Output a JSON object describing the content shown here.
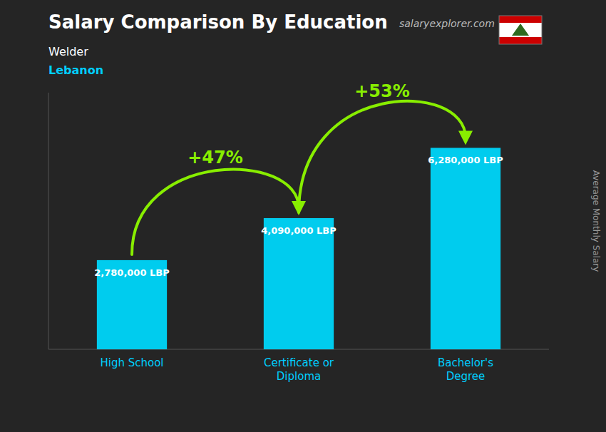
{
  "chart_data": {
    "type": "bar",
    "title": "Salary Comparison By Education",
    "subtitle": [
      "Welder",
      "Lebanon"
    ],
    "source": "salaryexplorer.com",
    "y_label": "Average Monthly Salary",
    "categories": [
      "High School",
      "Certificate or\nDiploma",
      "Bachelor's\nDegree"
    ],
    "values": [
      2780000,
      4090000,
      6280000
    ],
    "value_labels": [
      "2,780,000 LBP",
      "4,090,000 LBP",
      "6,280,000 LBP"
    ],
    "data_labels": true,
    "color": "#00ccee",
    "ylim": [
      0,
      8000000
    ],
    "tick_labels": "x",
    "grid": false,
    "annotations": [
      {
        "text": "+47%",
        "color": "#88ee00"
      },
      {
        "text": "+53%",
        "color": "#88ee00"
      }
    ]
  }
}
